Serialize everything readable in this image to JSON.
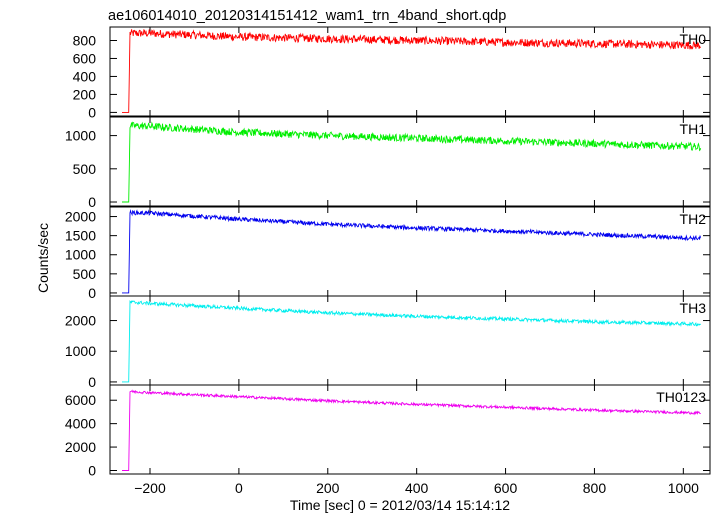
{
  "title": "ae106014010_20120314151412_wam1_trn_4band_short.qdp",
  "ylabel": "Counts/sec",
  "xlabel": "Time [sec] 0 = 2012/03/14 15:14:12",
  "chart_data": {
    "type": "line",
    "title": "ae106014010_20120314151412_wam1_trn_4band_short.qdp",
    "xlabel": "Time [sec] 0 = 2012/03/14 15:14:12",
    "ylabel": "Counts/sec",
    "xlim": [
      -290,
      1060
    ],
    "x_ticks": [
      -200,
      0,
      200,
      400,
      600,
      800,
      1000
    ],
    "x_tick_labels": [
      "−200",
      "0",
      "200",
      "400",
      "600",
      "800",
      "1000"
    ],
    "onset_time": -248,
    "pre_onset_time": -263,
    "end_time": 1040,
    "panels": [
      {
        "name": "TH0",
        "color": "#ff0000",
        "ylim": [
          -40,
          950
        ],
        "yticks": [
          0,
          200,
          400,
          600,
          800
        ],
        "points": [
          [
            -248,
            0
          ],
          [
            -245,
            880
          ],
          [
            -200,
            880
          ],
          [
            0,
            840
          ],
          [
            200,
            820
          ],
          [
            400,
            800
          ],
          [
            600,
            780
          ],
          [
            800,
            765
          ],
          [
            1040,
            745
          ]
        ],
        "noise": 45
      },
      {
        "name": "TH1",
        "color": "#00ee00",
        "ylim": [
          -60,
          1280
        ],
        "yticks": [
          0,
          500,
          1000
        ],
        "points": [
          [
            -248,
            0
          ],
          [
            -245,
            1150
          ],
          [
            -200,
            1140
          ],
          [
            0,
            1050
          ],
          [
            200,
            1000
          ],
          [
            400,
            960
          ],
          [
            600,
            920
          ],
          [
            800,
            880
          ],
          [
            1040,
            830
          ]
        ],
        "noise": 55
      },
      {
        "name": "TH2",
        "color": "#0000ee",
        "ylim": [
          -80,
          2250
        ],
        "yticks": [
          0,
          500,
          1000,
          1500,
          2000
        ],
        "points": [
          [
            -248,
            0
          ],
          [
            -245,
            2100
          ],
          [
            -200,
            2090
          ],
          [
            0,
            1930
          ],
          [
            200,
            1800
          ],
          [
            400,
            1700
          ],
          [
            600,
            1620
          ],
          [
            800,
            1530
          ],
          [
            1040,
            1430
          ]
        ],
        "noise": 55
      },
      {
        "name": "TH3",
        "color": "#00eeee",
        "ylim": [
          -100,
          2800
        ],
        "yticks": [
          0,
          1000,
          2000
        ],
        "points": [
          [
            -248,
            0
          ],
          [
            -245,
            2600
          ],
          [
            -200,
            2560
          ],
          [
            0,
            2400
          ],
          [
            200,
            2250
          ],
          [
            400,
            2140
          ],
          [
            600,
            2050
          ],
          [
            800,
            1960
          ],
          [
            1040,
            1880
          ]
        ],
        "noise": 55
      },
      {
        "name": "TH0123",
        "color": "#ee00ee",
        "ylim": [
          -300,
          7300
        ],
        "yticks": [
          0,
          2000,
          4000,
          6000
        ],
        "points": [
          [
            -248,
            0
          ],
          [
            -245,
            6750
          ],
          [
            -200,
            6650
          ],
          [
            0,
            6300
          ],
          [
            200,
            5950
          ],
          [
            400,
            5650
          ],
          [
            600,
            5400
          ],
          [
            800,
            5150
          ],
          [
            1040,
            4900
          ]
        ],
        "noise": 110
      }
    ]
  }
}
